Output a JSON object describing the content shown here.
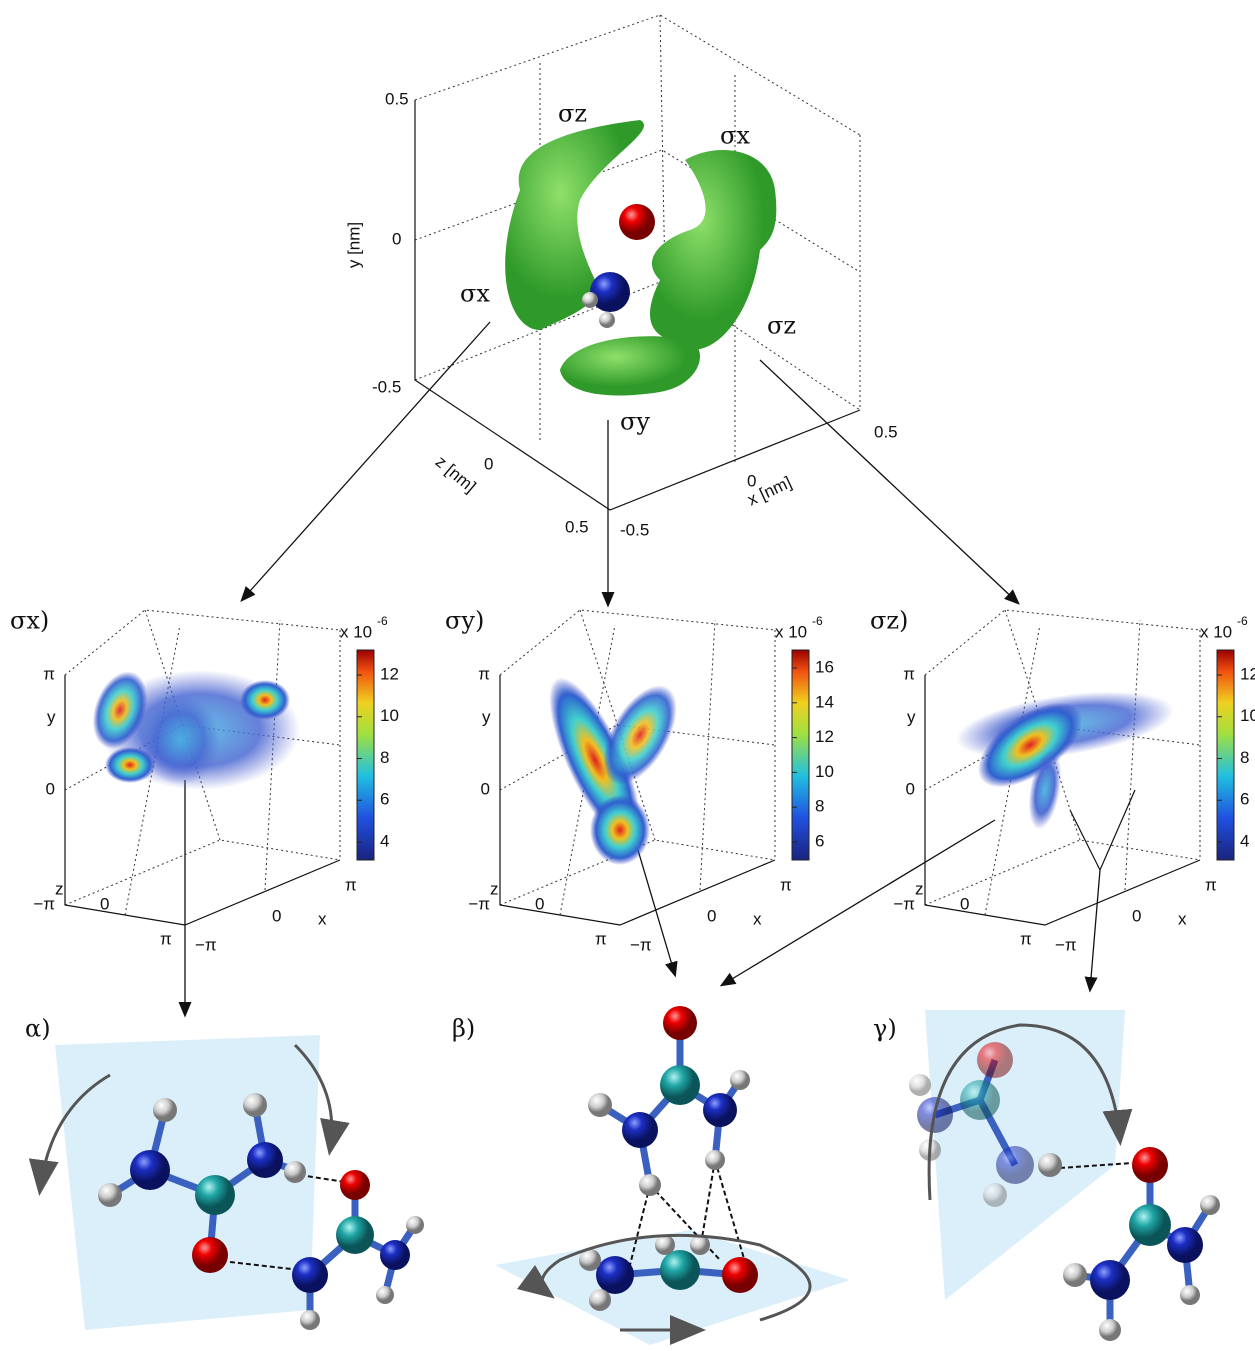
{
  "top": {
    "y_label": "y [nm]",
    "z_label": "z [nm]",
    "x_label": "x [nm]",
    "y_ticks": [
      "0.5",
      "0",
      "-0.5"
    ],
    "z_ticks": [
      "0",
      "0.5"
    ],
    "x_ticks": [
      "-0.5",
      "0",
      "0.5"
    ],
    "labels": [
      "σz",
      "σx",
      "σx",
      "σz",
      "σy"
    ]
  },
  "panels": [
    {
      "label": "σx)",
      "scale": "x 10",
      "exponent": "-6",
      "colorbar_ticks": [
        12,
        10,
        8,
        6,
        4
      ],
      "y_label": "y",
      "z_label": "z",
      "x_label": "x",
      "y_ticks": [
        "π",
        "0",
        "−π"
      ],
      "z_ticks": [
        "0",
        "π"
      ],
      "x_ticks": [
        "−π",
        "0",
        "π"
      ]
    },
    {
      "label": "σy)",
      "scale": "x 10",
      "exponent": "-6",
      "colorbar_ticks": [
        16,
        14,
        12,
        10,
        8,
        6
      ],
      "y_label": "y",
      "z_label": "z",
      "x_label": "x",
      "y_ticks": [
        "π",
        "0",
        "−π"
      ],
      "z_ticks": [
        "0",
        "π"
      ],
      "x_ticks": [
        "−π",
        "0",
        "π"
      ]
    },
    {
      "label": "σz)",
      "scale": "x 10",
      "exponent": "-6",
      "colorbar_ticks": [
        12,
        10,
        8,
        6,
        4
      ],
      "y_label": "y",
      "z_label": "z",
      "x_label": "x",
      "y_ticks": [
        "π",
        "0",
        "−π"
      ],
      "z_ticks": [
        "0",
        "π"
      ],
      "x_ticks": [
        "−π",
        "0",
        "π"
      ]
    }
  ],
  "structures": [
    "α)",
    "β)",
    "γ)"
  ]
}
